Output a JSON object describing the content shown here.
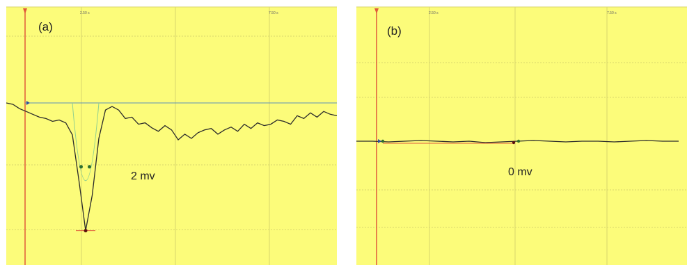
{
  "colors": {
    "background": "#fcfc7a",
    "grid": "#d8d66c",
    "trace": "#2a2a2a",
    "cursor": "#e05a3a",
    "baseline": "#5a8fb8",
    "fit": "#8fcf8f",
    "marker": "#2f6f2f",
    "peak": "#5a0f0f"
  },
  "chart_data": [
    {
      "type": "line",
      "panel_label": "(a)",
      "annotation": "2 mv",
      "x_tick_labels": [
        "2.50 s",
        "7.50 s"
      ],
      "series": [
        {
          "x": [
            0,
            2,
            4,
            6,
            8,
            10,
            12,
            14,
            16,
            18,
            20,
            22,
            24,
            26,
            28,
            30,
            32,
            34,
            36,
            38,
            40,
            42,
            44,
            46,
            48,
            50,
            52,
            54,
            56,
            58,
            60,
            62,
            64,
            66,
            68,
            70,
            72,
            74,
            76,
            78,
            80,
            82,
            84,
            86,
            88,
            90,
            92,
            94,
            96,
            98,
            100
          ],
          "y": [
            0.0,
            -0.02,
            -0.08,
            -0.12,
            -0.16,
            -0.2,
            -0.22,
            -0.26,
            -0.24,
            -0.28,
            -0.45,
            -1.1,
            -1.8,
            -1.3,
            -0.5,
            -0.1,
            -0.05,
            -0.1,
            -0.22,
            -0.2,
            -0.3,
            -0.28,
            -0.35,
            -0.4,
            -0.32,
            -0.38,
            -0.52,
            -0.44,
            -0.5,
            -0.42,
            -0.38,
            -0.36,
            -0.44,
            -0.38,
            -0.34,
            -0.4,
            -0.3,
            -0.36,
            -0.28,
            -0.32,
            -0.3,
            -0.24,
            -0.26,
            -0.3,
            -0.18,
            -0.22,
            -0.14,
            -0.2,
            -0.12,
            -0.16,
            -0.18
          ]
        }
      ],
      "ylim": [
        -2.0,
        0.3
      ]
    },
    {
      "type": "line",
      "panel_label": "(b)",
      "annotation": "0 mv",
      "x_tick_labels": [
        "2.50 s",
        "7.50 s"
      ],
      "series": [
        {
          "x": [
            0,
            5,
            10,
            15,
            20,
            25,
            30,
            35,
            40,
            45,
            50,
            55,
            60,
            65,
            70,
            75,
            80,
            85,
            90,
            95,
            100
          ],
          "y": [
            0.0,
            0.0,
            -0.01,
            0.0,
            0.01,
            0.0,
            -0.01,
            0.0,
            -0.02,
            -0.01,
            0.0,
            0.01,
            0.0,
            -0.01,
            0.0,
            0.0,
            -0.01,
            0.0,
            0.01,
            0.0,
            0.0
          ]
        }
      ],
      "ylim": [
        -2.0,
        0.3
      ]
    }
  ]
}
